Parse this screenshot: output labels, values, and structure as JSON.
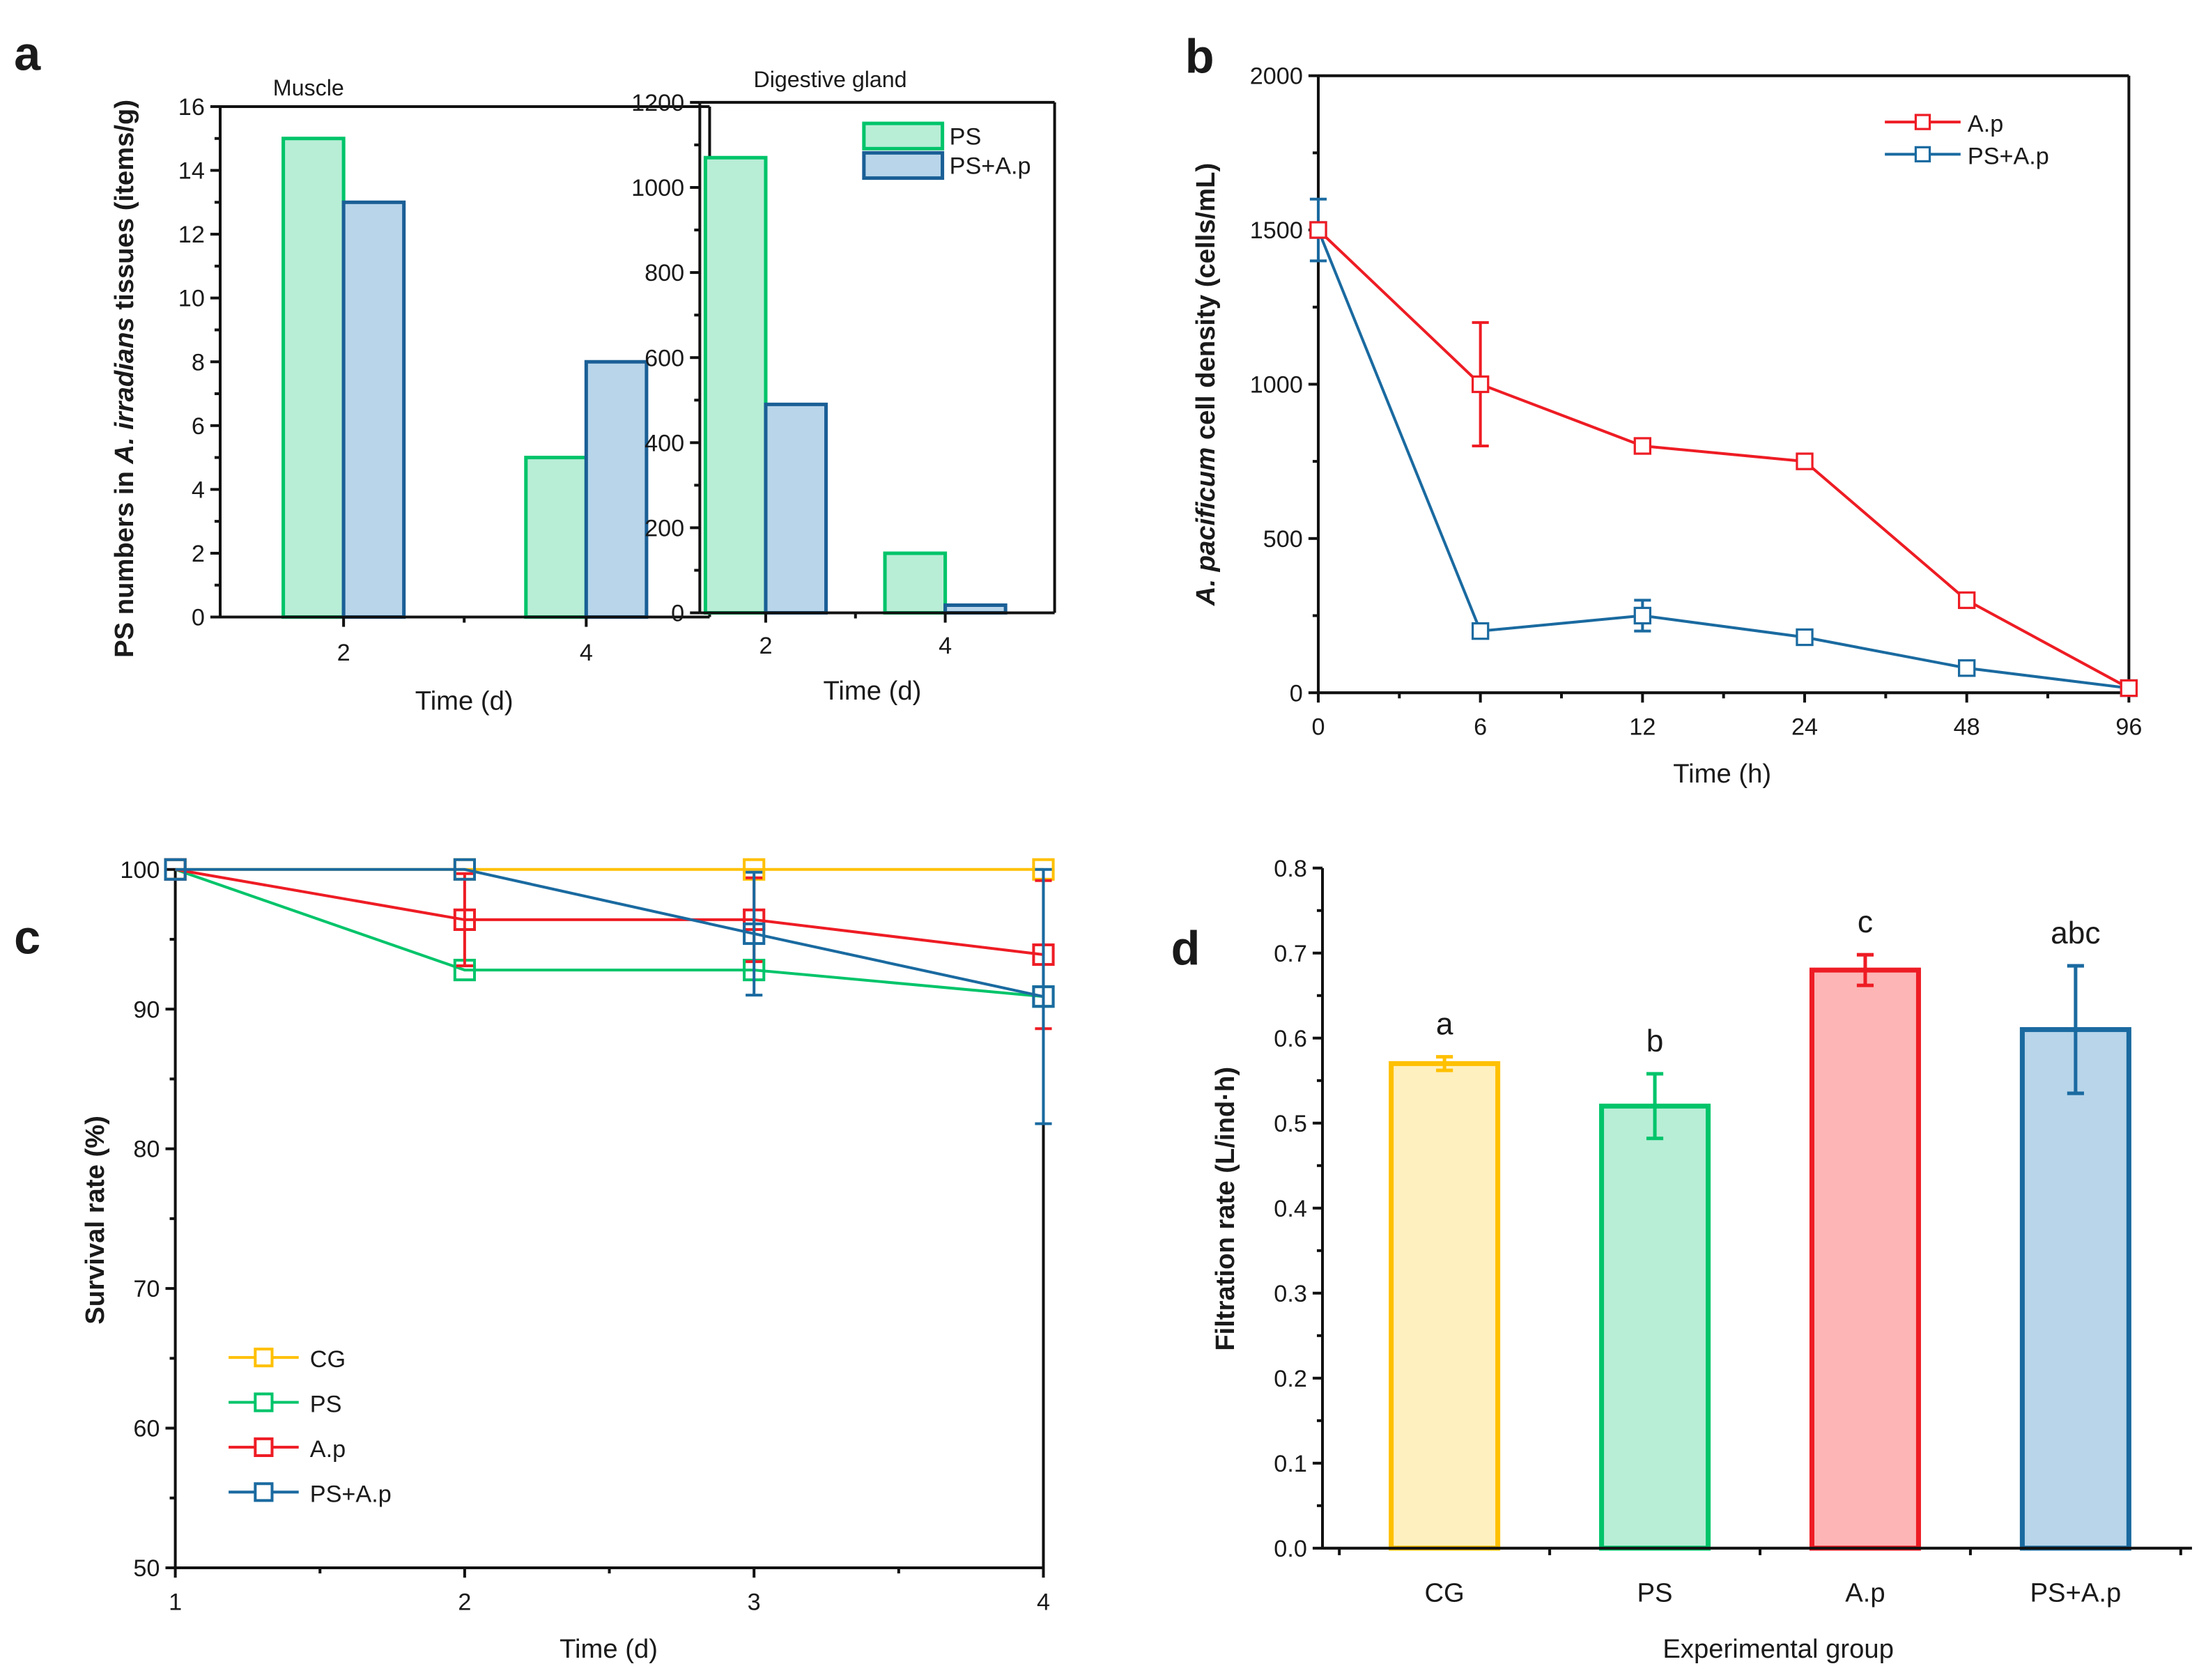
{
  "panels": {
    "a": "a",
    "b": "b",
    "c": "c",
    "d": "d"
  },
  "chart_data": [
    {
      "id": "a_muscle",
      "type": "bar",
      "title": "Muscle",
      "xlabel": "Time (d)",
      "ylabel_parts": [
        "PS numbers in ",
        "A. irradians",
        " tissues (items/g)"
      ],
      "categories": [
        "2",
        "4"
      ],
      "series": [
        {
          "name": "PS",
          "values": [
            15,
            5
          ],
          "stroke": "#00c46a",
          "fill": "#b8eed6"
        },
        {
          "name": "PS+A.p",
          "values": [
            13,
            8
          ],
          "stroke": "#1a5f96",
          "fill": "#b8d5ea"
        }
      ],
      "ylim": [
        0,
        16
      ],
      "yticks": [
        0,
        2,
        4,
        6,
        8,
        10,
        12,
        14,
        16
      ],
      "grid": false
    },
    {
      "id": "a_digestive",
      "type": "bar",
      "title": "Digestive gland",
      "xlabel": "Time (d)",
      "categories": [
        "2",
        "4"
      ],
      "series": [
        {
          "name": "PS",
          "values": [
            1070,
            140
          ],
          "stroke": "#00c46a",
          "fill": "#b8eed6"
        },
        {
          "name": "PS+A.p",
          "values": [
            490,
            18
          ],
          "stroke": "#1a5f96",
          "fill": "#b8d5ea"
        }
      ],
      "ylim": [
        0,
        1200
      ],
      "yticks": [
        0,
        200,
        400,
        600,
        800,
        1000,
        1200
      ],
      "legend": [
        "PS",
        "PS+A.p"
      ],
      "legend_position": "top-right",
      "grid": false
    },
    {
      "id": "b",
      "type": "line",
      "xlabel": "Time (h)",
      "ylabel_parts": [
        "A. pacificum",
        " cell density (cells/mL)"
      ],
      "categories": [
        "0",
        "6",
        "12",
        "24",
        "48",
        "96"
      ],
      "series": [
        {
          "name": "A.p",
          "color": "#ee1c24",
          "values": [
            1500,
            1000,
            800,
            750,
            300,
            15
          ],
          "errors": [
            0,
            200,
            15,
            15,
            15,
            0
          ]
        },
        {
          "name": "PS+A.p",
          "color": "#1a6aa0",
          "values": [
            1500,
            200,
            250,
            180,
            80,
            15
          ],
          "errors": [
            100,
            15,
            50,
            15,
            15,
            10
          ]
        }
      ],
      "ylim": [
        0,
        2000
      ],
      "yticks": [
        0,
        500,
        1000,
        1500,
        2000
      ],
      "legend_position": "top-right",
      "grid": false
    },
    {
      "id": "c",
      "type": "line",
      "xlabel": "Time (d)",
      "ylabel": "Survival rate (%)",
      "x": [
        1,
        2,
        3,
        4
      ],
      "series": [
        {
          "name": "CG",
          "color": "#ffc000",
          "values": [
            100,
            100,
            100,
            100
          ],
          "errors": [
            0,
            0,
            0,
            0
          ]
        },
        {
          "name": "PS",
          "color": "#00c46a",
          "values": [
            100,
            92.8,
            92.8,
            90.9
          ],
          "errors": [
            0,
            0,
            0,
            0
          ]
        },
        {
          "name": "A.p",
          "color": "#ee1c24",
          "values": [
            100,
            96.4,
            96.4,
            93.9
          ],
          "errors": [
            0,
            3.3,
            3.0,
            5.3
          ]
        },
        {
          "name": "PS+A.p",
          "color": "#1a6aa0",
          "values": [
            100,
            100,
            95.4,
            90.9
          ],
          "errors": [
            0,
            0,
            4.4,
            9.1
          ]
        }
      ],
      "ylim": [
        50,
        100
      ],
      "yticks": [
        50,
        60,
        70,
        80,
        90,
        100
      ],
      "xticks": [
        1,
        2,
        3,
        4
      ],
      "legend_position": "bottom-left",
      "grid": false
    },
    {
      "id": "d",
      "type": "bar",
      "xlabel": "Experimental group",
      "ylabel": "Filtration rate (L/ind·h)",
      "categories": [
        "CG",
        "PS",
        "A.p",
        "PS+A.p"
      ],
      "values": [
        0.57,
        0.52,
        0.68,
        0.61
      ],
      "errors": [
        0.008,
        0.038,
        0.018,
        0.075
      ],
      "labels": [
        "a",
        "b",
        "c",
        "abc"
      ],
      "strokes": [
        "#ffc000",
        "#00c46a",
        "#ee1c24",
        "#1a6aa0"
      ],
      "fills": [
        "#fff0bf",
        "#b8eed6",
        "#fdb5b5",
        "#b8d5ea"
      ],
      "ylim": [
        0,
        0.8
      ],
      "yticks": [
        "0.0",
        "0.1",
        "0.2",
        "0.3",
        "0.4",
        "0.5",
        "0.6",
        "0.7",
        "0.8"
      ],
      "grid": false
    }
  ]
}
